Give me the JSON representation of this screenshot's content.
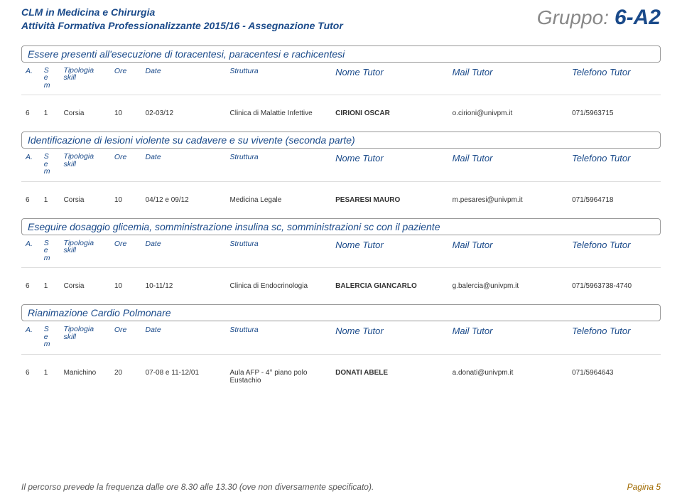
{
  "header": {
    "line1": "CLM in Medicina e Chirurgia",
    "line2": "Attività Formativa Professionalizzante 2015/16 - Assegnazione Tutor",
    "gruppo_label": "Gruppo:",
    "gruppo_value": "6-A2"
  },
  "columns": {
    "a": "A.",
    "sem": "S\ne\nm",
    "tipologia": "Tipologia\nskill",
    "ore": "Ore",
    "date": "Date",
    "struttura": "Struttura",
    "nome": "Nome Tutor",
    "mail": "Mail Tutor",
    "telefono": "Telefono Tutor"
  },
  "sections": [
    {
      "title": "Essere presenti all'esecuzione di toracentesi, paracentesi e rachicentesi",
      "rows": [
        {
          "a": "6",
          "sem": "1",
          "tip": "Corsia",
          "ore": "10",
          "date": "02-03/12",
          "str": "Clinica di Malattie Infettive",
          "nome": "CIRIONI OSCAR",
          "mail": "o.cirioni@univpm.it",
          "tel": "071/5963715"
        }
      ]
    },
    {
      "title": "Identificazione di lesioni violente su cadavere e su vivente (seconda parte)",
      "rows": [
        {
          "a": "6",
          "sem": "1",
          "tip": "Corsia",
          "ore": "10",
          "date": "04/12 e 09/12",
          "str": "Medicina Legale",
          "nome": "PESARESI MAURO",
          "mail": "m.pesaresi@univpm.it",
          "tel": "071/5964718"
        }
      ]
    },
    {
      "title": "Eseguire dosaggio glicemia, somministrazione insulina sc, somministrazioni sc con il paziente",
      "rows": [
        {
          "a": "6",
          "sem": "1",
          "tip": "Corsia",
          "ore": "10",
          "date": "10-11/12",
          "str": "Clinica di Endocrinologia",
          "nome": "BALERCIA GIANCARLO",
          "mail": "g.balercia@univpm.it",
          "tel": "071/5963738-4740"
        }
      ]
    },
    {
      "title": "Rianimazione Cardio Polmonare",
      "rows": [
        {
          "a": "6",
          "sem": "1",
          "tip": "Manichino",
          "ore": "20",
          "date": "07-08 e 11-12/01",
          "str": "Aula AFP - 4° piano polo Eustachio",
          "nome": "DONATI ABELE",
          "mail": "a.donati@univpm.it",
          "tel": "071/5964643"
        }
      ]
    }
  ],
  "footer": {
    "note": "Il percorso prevede la frequenza dalle ore 8.30 alle 13.30 (ove non diversamente specificato).",
    "page": "Pagina 5"
  },
  "colors": {
    "primary": "#1a4a8a",
    "muted": "#888888",
    "text": "#333333",
    "page_accent": "#a06a00"
  }
}
